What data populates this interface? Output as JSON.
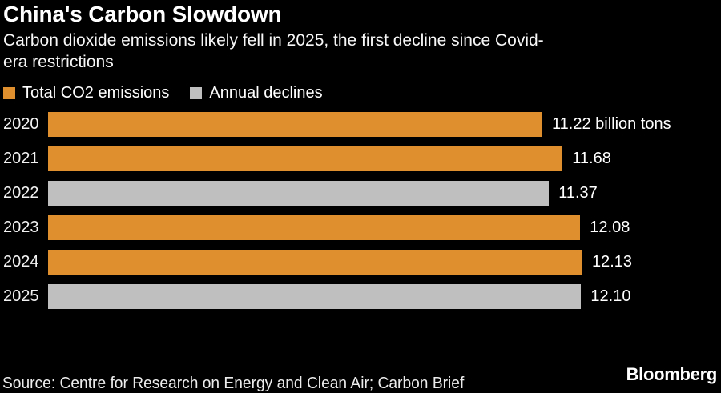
{
  "header": {
    "title": "China's Carbon Slowdown",
    "subtitle_line1": "Carbon dioxide emissions likely fell in 2025, the first decline since Covid-",
    "subtitle_line2": "era restrictions"
  },
  "legend": [
    {
      "label": "Total CO2 emissions",
      "series": "total"
    },
    {
      "label": "Annual declines",
      "series": "decline"
    }
  ],
  "colors": {
    "orange": "#DF8F2D",
    "gray": "#BFBFBF",
    "background": "#000000",
    "text": "#FFFFFF"
  },
  "chart_data": {
    "type": "bar",
    "orientation": "horizontal",
    "title": "China's Carbon Slowdown",
    "unit": "billion tons",
    "xlim": [
      0,
      12.13
    ],
    "grid": false,
    "legend_position": "top",
    "categories": [
      "2020",
      "2021",
      "2022",
      "2023",
      "2024",
      "2025"
    ],
    "rows": [
      {
        "year": "2020",
        "value": 11.22,
        "display": "11.22 billion tons",
        "series": "total"
      },
      {
        "year": "2021",
        "value": 11.68,
        "display": "11.68",
        "series": "total"
      },
      {
        "year": "2022",
        "value": 11.37,
        "display": "11.37",
        "series": "decline"
      },
      {
        "year": "2023",
        "value": 12.08,
        "display": "12.08",
        "series": "total"
      },
      {
        "year": "2024",
        "value": 12.13,
        "display": "12.13",
        "series": "total"
      },
      {
        "year": "2025",
        "value": 12.1,
        "display": "12.10",
        "series": "decline"
      }
    ]
  },
  "footer": {
    "source": "Source: Centre for Research on Energy and Clean Air; Carbon Brief",
    "brand": "Bloomberg"
  }
}
